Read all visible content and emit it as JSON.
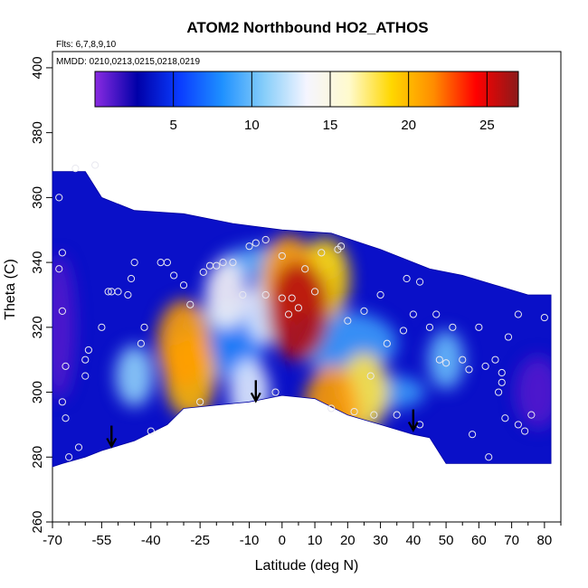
{
  "chart_data": {
    "type": "heatmap",
    "title": "ATOM2 Northbound HO2_ATHOS",
    "annotations": [
      "Flts: 6,7,8,9,10",
      "MMDD: 0210,0213,0215,0218,0219"
    ],
    "xlabel": "Latitude (deg N)",
    "ylabel": "Theta (C)",
    "xlim": [
      -70,
      85
    ],
    "ylim": [
      260,
      405
    ],
    "x_ticks_major": [
      -70,
      -55,
      -40,
      -25,
      -10,
      0,
      10,
      20,
      30,
      40,
      50,
      60,
      70,
      80
    ],
    "x_ticks_minor": [
      -65,
      -60,
      -50,
      -45,
      -35,
      -30,
      -20,
      -15,
      -5,
      5,
      15,
      25,
      35,
      45,
      55,
      65,
      75,
      85
    ],
    "y_ticks": [
      260,
      280,
      300,
      320,
      340,
      360,
      380,
      400
    ],
    "colorbar": {
      "range": [
        0,
        27
      ],
      "ticks": [
        5,
        10,
        15,
        20,
        25
      ],
      "colors": [
        "#8a2be2",
        "#0000a8",
        "#0a3cff",
        "#1e90ff",
        "#87cefa",
        "#f5f5ff",
        "#fffacd",
        "#ffd700",
        "#ff8c00",
        "#ff0000",
        "#8b1a1a"
      ]
    },
    "hotspots": [
      {
        "lat": -30,
        "theta": 315,
        "value": 21
      },
      {
        "lat": -28,
        "theta": 305,
        "value": 20
      },
      {
        "lat": 5,
        "theta": 325,
        "value": 26
      },
      {
        "lat": 2,
        "theta": 335,
        "value": 21
      },
      {
        "lat": 13,
        "theta": 335,
        "value": 19
      },
      {
        "lat": 15,
        "theta": 295,
        "value": 21
      },
      {
        "lat": 25,
        "theta": 300,
        "value": 18
      },
      {
        "lat": -17,
        "theta": 330,
        "value": 14
      },
      {
        "lat": -45,
        "theta": 305,
        "value": 11
      },
      {
        "lat": 50,
        "theta": 310,
        "value": 10
      },
      {
        "lat": -5,
        "theta": 325,
        "value": 13
      },
      {
        "lat": -10,
        "theta": 300,
        "value": 13
      }
    ],
    "domain_upper_boundary": [
      [
        -70,
        368
      ],
      [
        -60,
        368
      ],
      [
        -55,
        360
      ],
      [
        -45,
        356
      ],
      [
        -30,
        355
      ],
      [
        -15,
        352
      ],
      [
        0,
        350
      ],
      [
        15,
        349
      ],
      [
        30,
        344
      ],
      [
        45,
        338
      ],
      [
        55,
        336
      ],
      [
        65,
        333
      ],
      [
        75,
        330
      ],
      [
        82,
        330
      ]
    ],
    "domain_lower_boundary": [
      [
        -70,
        277
      ],
      [
        -67,
        278
      ],
      [
        -60,
        280
      ],
      [
        -55,
        282
      ],
      [
        -45,
        285
      ],
      [
        -35,
        290
      ],
      [
        -30,
        295
      ],
      [
        -20,
        296
      ],
      [
        -10,
        297
      ],
      [
        0,
        299
      ],
      [
        10,
        298
      ],
      [
        20,
        293
      ],
      [
        30,
        290
      ],
      [
        40,
        287
      ],
      [
        45,
        286
      ],
      [
        50,
        278
      ],
      [
        82,
        278
      ]
    ],
    "sample_points": [
      [
        -63,
        369
      ],
      [
        -57,
        370
      ],
      [
        -68,
        360
      ],
      [
        -67,
        343
      ],
      [
        -68,
        338
      ],
      [
        -67,
        325
      ],
      [
        -66,
        308
      ],
      [
        -67,
        297
      ],
      [
        -66,
        292
      ],
      [
        -65,
        280
      ],
      [
        -62,
        283
      ],
      [
        -60,
        310
      ],
      [
        -60,
        305
      ],
      [
        -59,
        313
      ],
      [
        -55,
        320
      ],
      [
        -53,
        331
      ],
      [
        -52,
        331
      ],
      [
        -50,
        331
      ],
      [
        -47,
        330
      ],
      [
        -46,
        335
      ],
      [
        -45,
        340
      ],
      [
        -43,
        315
      ],
      [
        -42,
        320
      ],
      [
        -40,
        288
      ],
      [
        -37,
        340
      ],
      [
        -35,
        340
      ],
      [
        -33,
        336
      ],
      [
        -30,
        333
      ],
      [
        -28,
        327
      ],
      [
        -25,
        297
      ],
      [
        -24,
        337
      ],
      [
        -22,
        339
      ],
      [
        -20,
        339
      ],
      [
        -18,
        340
      ],
      [
        -15,
        340
      ],
      [
        -12,
        330
      ],
      [
        -10,
        345
      ],
      [
        -8,
        346
      ],
      [
        -5,
        347
      ],
      [
        -5,
        330
      ],
      [
        -2,
        300
      ],
      [
        0,
        342
      ],
      [
        0,
        329
      ],
      [
        2,
        324
      ],
      [
        3,
        329
      ],
      [
        5,
        326
      ],
      [
        7,
        338
      ],
      [
        10,
        331
      ],
      [
        12,
        343
      ],
      [
        15,
        295
      ],
      [
        17,
        344
      ],
      [
        18,
        345
      ],
      [
        20,
        322
      ],
      [
        22,
        294
      ],
      [
        25,
        325
      ],
      [
        27,
        305
      ],
      [
        28,
        293
      ],
      [
        30,
        330
      ],
      [
        32,
        315
      ],
      [
        35,
        293
      ],
      [
        37,
        319
      ],
      [
        38,
        335
      ],
      [
        40,
        324
      ],
      [
        42,
        334
      ],
      [
        42,
        290
      ],
      [
        45,
        320
      ],
      [
        47,
        324
      ],
      [
        48,
        310
      ],
      [
        50,
        309
      ],
      [
        52,
        320
      ],
      [
        55,
        310
      ],
      [
        57,
        307
      ],
      [
        58,
        287
      ],
      [
        60,
        320
      ],
      [
        62,
        308
      ],
      [
        63,
        280
      ],
      [
        65,
        310
      ],
      [
        66,
        300
      ],
      [
        67,
        306
      ],
      [
        67,
        303
      ],
      [
        68,
        292
      ],
      [
        69,
        317
      ],
      [
        72,
        324
      ],
      [
        72,
        290
      ],
      [
        74,
        288
      ],
      [
        76,
        293
      ],
      [
        80,
        323
      ]
    ],
    "arrows": [
      {
        "lat": -52,
        "theta": 283
      },
      {
        "lat": -8,
        "theta": 297
      },
      {
        "lat": 40,
        "theta": 288
      }
    ]
  }
}
